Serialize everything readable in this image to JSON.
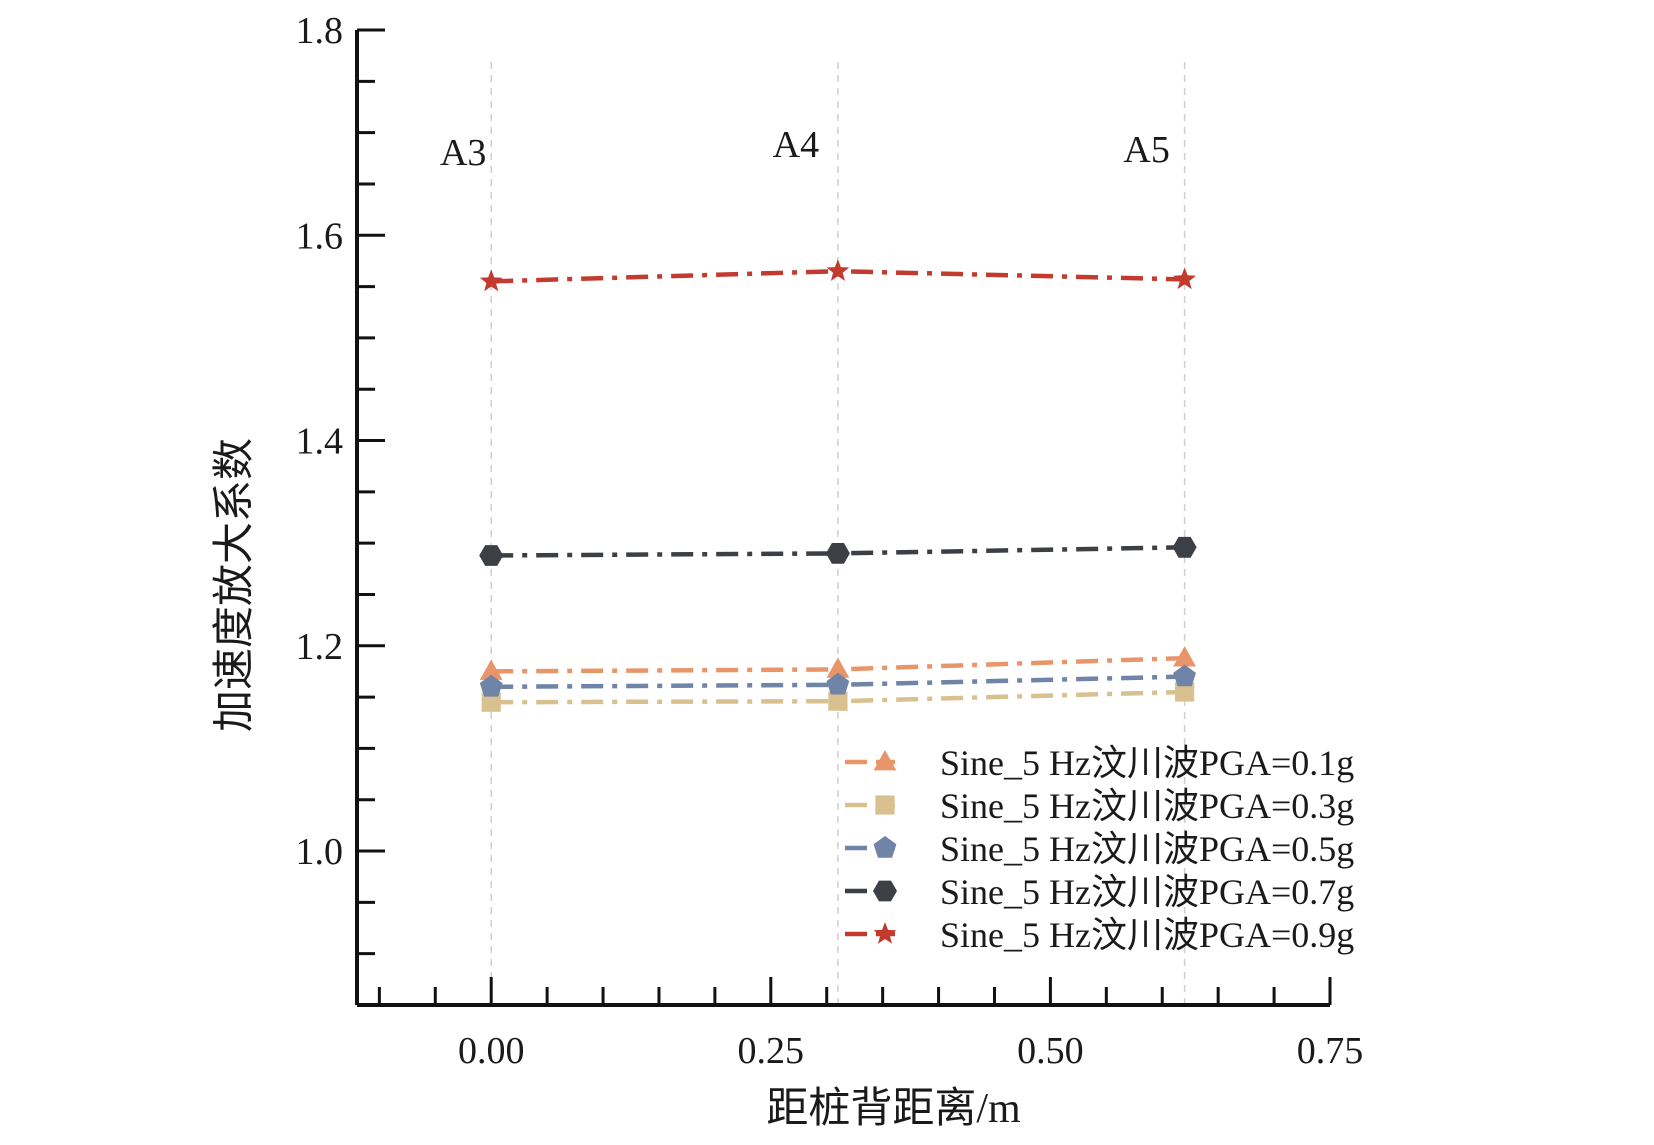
{
  "chart_data": {
    "type": "line",
    "title": "",
    "xlabel": "距桩背距离/m",
    "ylabel": "加速度放大系数",
    "xlim": [
      -0.12,
      0.75
    ],
    "ylim": [
      0.85,
      1.8
    ],
    "x_ticks": [
      0.0,
      0.25,
      0.5,
      0.75
    ],
    "x_tick_labels": [
      "0.00",
      "0.25",
      "0.50",
      "0.75"
    ],
    "y_ticks": [
      1.0,
      1.2,
      1.4,
      1.6,
      1.8
    ],
    "y_tick_labels": [
      "1.0",
      "1.2",
      "1.4",
      "1.6",
      "1.8"
    ],
    "grid": "vertical dashed at data points",
    "legend_position": "lower-right",
    "x": [
      0.0,
      0.31,
      0.62
    ],
    "annotations": [
      "A3",
      "A4",
      "A5"
    ],
    "series": [
      {
        "name": "Sine_5 Hz汶川波PGA=0.1g",
        "values": [
          1.175,
          1.177,
          1.188
        ],
        "color": "#E8956A",
        "marker": "triangle",
        "linestyle": "dashdot"
      },
      {
        "name": "Sine_5 Hz汶川波PGA=0.3g",
        "values": [
          1.145,
          1.146,
          1.155
        ],
        "color": "#D9C08F",
        "marker": "square",
        "linestyle": "dashdot"
      },
      {
        "name": "Sine_5 Hz汶川波PGA=0.5g",
        "values": [
          1.16,
          1.162,
          1.17
        ],
        "color": "#6F84A7",
        "marker": "pentagon",
        "linestyle": "dashdot"
      },
      {
        "name": "Sine_5 Hz汶川波PGA=0.7g",
        "values": [
          1.288,
          1.29,
          1.296
        ],
        "color": "#3C3F44",
        "marker": "hexagon",
        "linestyle": "dashdot"
      },
      {
        "name": "Sine_5 Hz汶川波PGA=0.9g",
        "values": [
          1.555,
          1.565,
          1.557
        ],
        "color": "#C23B2E",
        "marker": "star",
        "linestyle": "dashdot"
      }
    ]
  }
}
